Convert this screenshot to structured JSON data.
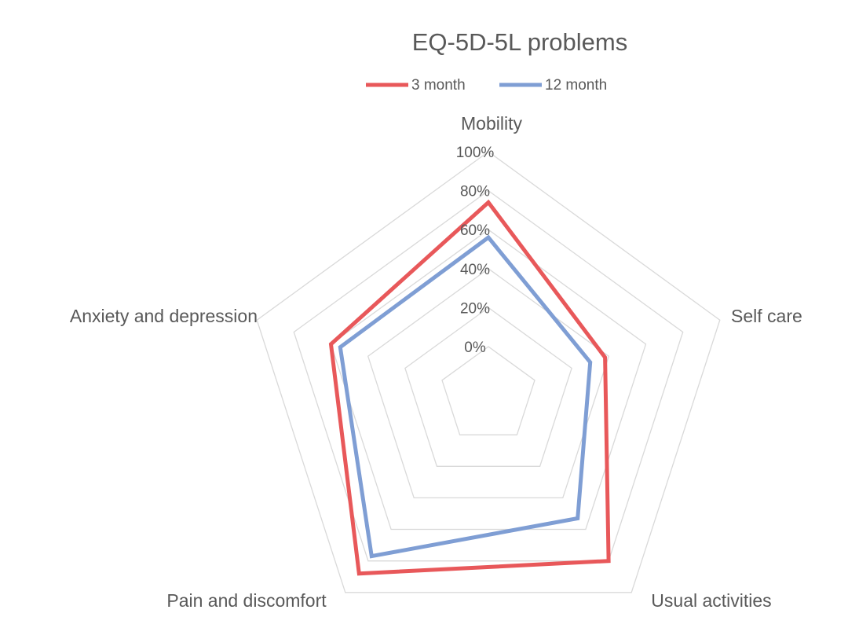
{
  "chart_data": {
    "type": "radar",
    "title": "EQ-5D-5L problems",
    "axes": [
      "Mobility",
      "Self care",
      "Usual activities",
      "Pain and discomfort",
      "Anxiety and depression"
    ],
    "tick_labels": [
      "0%",
      "20%",
      "40%",
      "60%",
      "80%",
      "100%"
    ],
    "rlim": [
      0,
      100
    ],
    "grid": true,
    "legend_position": "top",
    "series": [
      {
        "name": "3 month",
        "color": "#e8585a",
        "values": [
          74,
          38,
          80,
          88,
          60
        ]
      },
      {
        "name": "12 month",
        "color": "#7f9ed4",
        "values": [
          56,
          30,
          53,
          77,
          55
        ]
      }
    ]
  }
}
